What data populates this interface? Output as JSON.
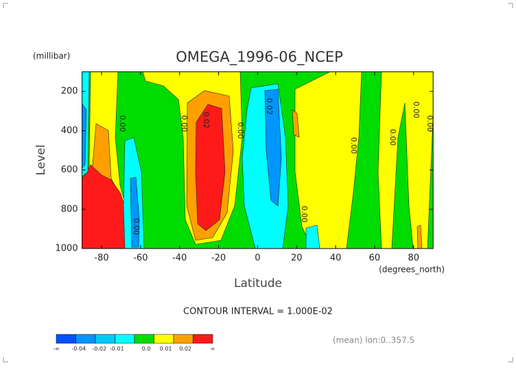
{
  "chart_data": {
    "type": "contour",
    "title": "OMEGA_1996-06_NCEP",
    "y_unit": "(millibar)",
    "ylabel": "Level",
    "xlabel": "Latitude",
    "x_unit": "(degrees_north)",
    "xlim": [
      -90,
      90
    ],
    "xticks": [
      -80,
      -60,
      -40,
      -20,
      0,
      20,
      40,
      60,
      80
    ],
    "ylim": [
      1000,
      100
    ],
    "yticks": [
      200,
      400,
      600,
      800,
      1000
    ],
    "contour_interval": "CONTOUR INTERVAL = 1.000E-02",
    "contour_labels": [
      "0.00",
      "0.00",
      "0.02",
      "0.00",
      "0.02",
      "0.00",
      "0.00",
      "0.00",
      "0.00",
      "0.00",
      "0.00"
    ],
    "colorbar": {
      "colors": [
        "#0050ff",
        "#0096ff",
        "#00c8ff",
        "#00ffff",
        "#00dc00",
        "#ffff00",
        "#ffa000",
        "#ff1a1a"
      ],
      "labels": [
        "-∞",
        "-0.04",
        "-0.02",
        "-0.01",
        "0.0",
        "0.01",
        "0.02",
        "∞"
      ]
    },
    "footer": "(mean) lon:0..357.5"
  }
}
